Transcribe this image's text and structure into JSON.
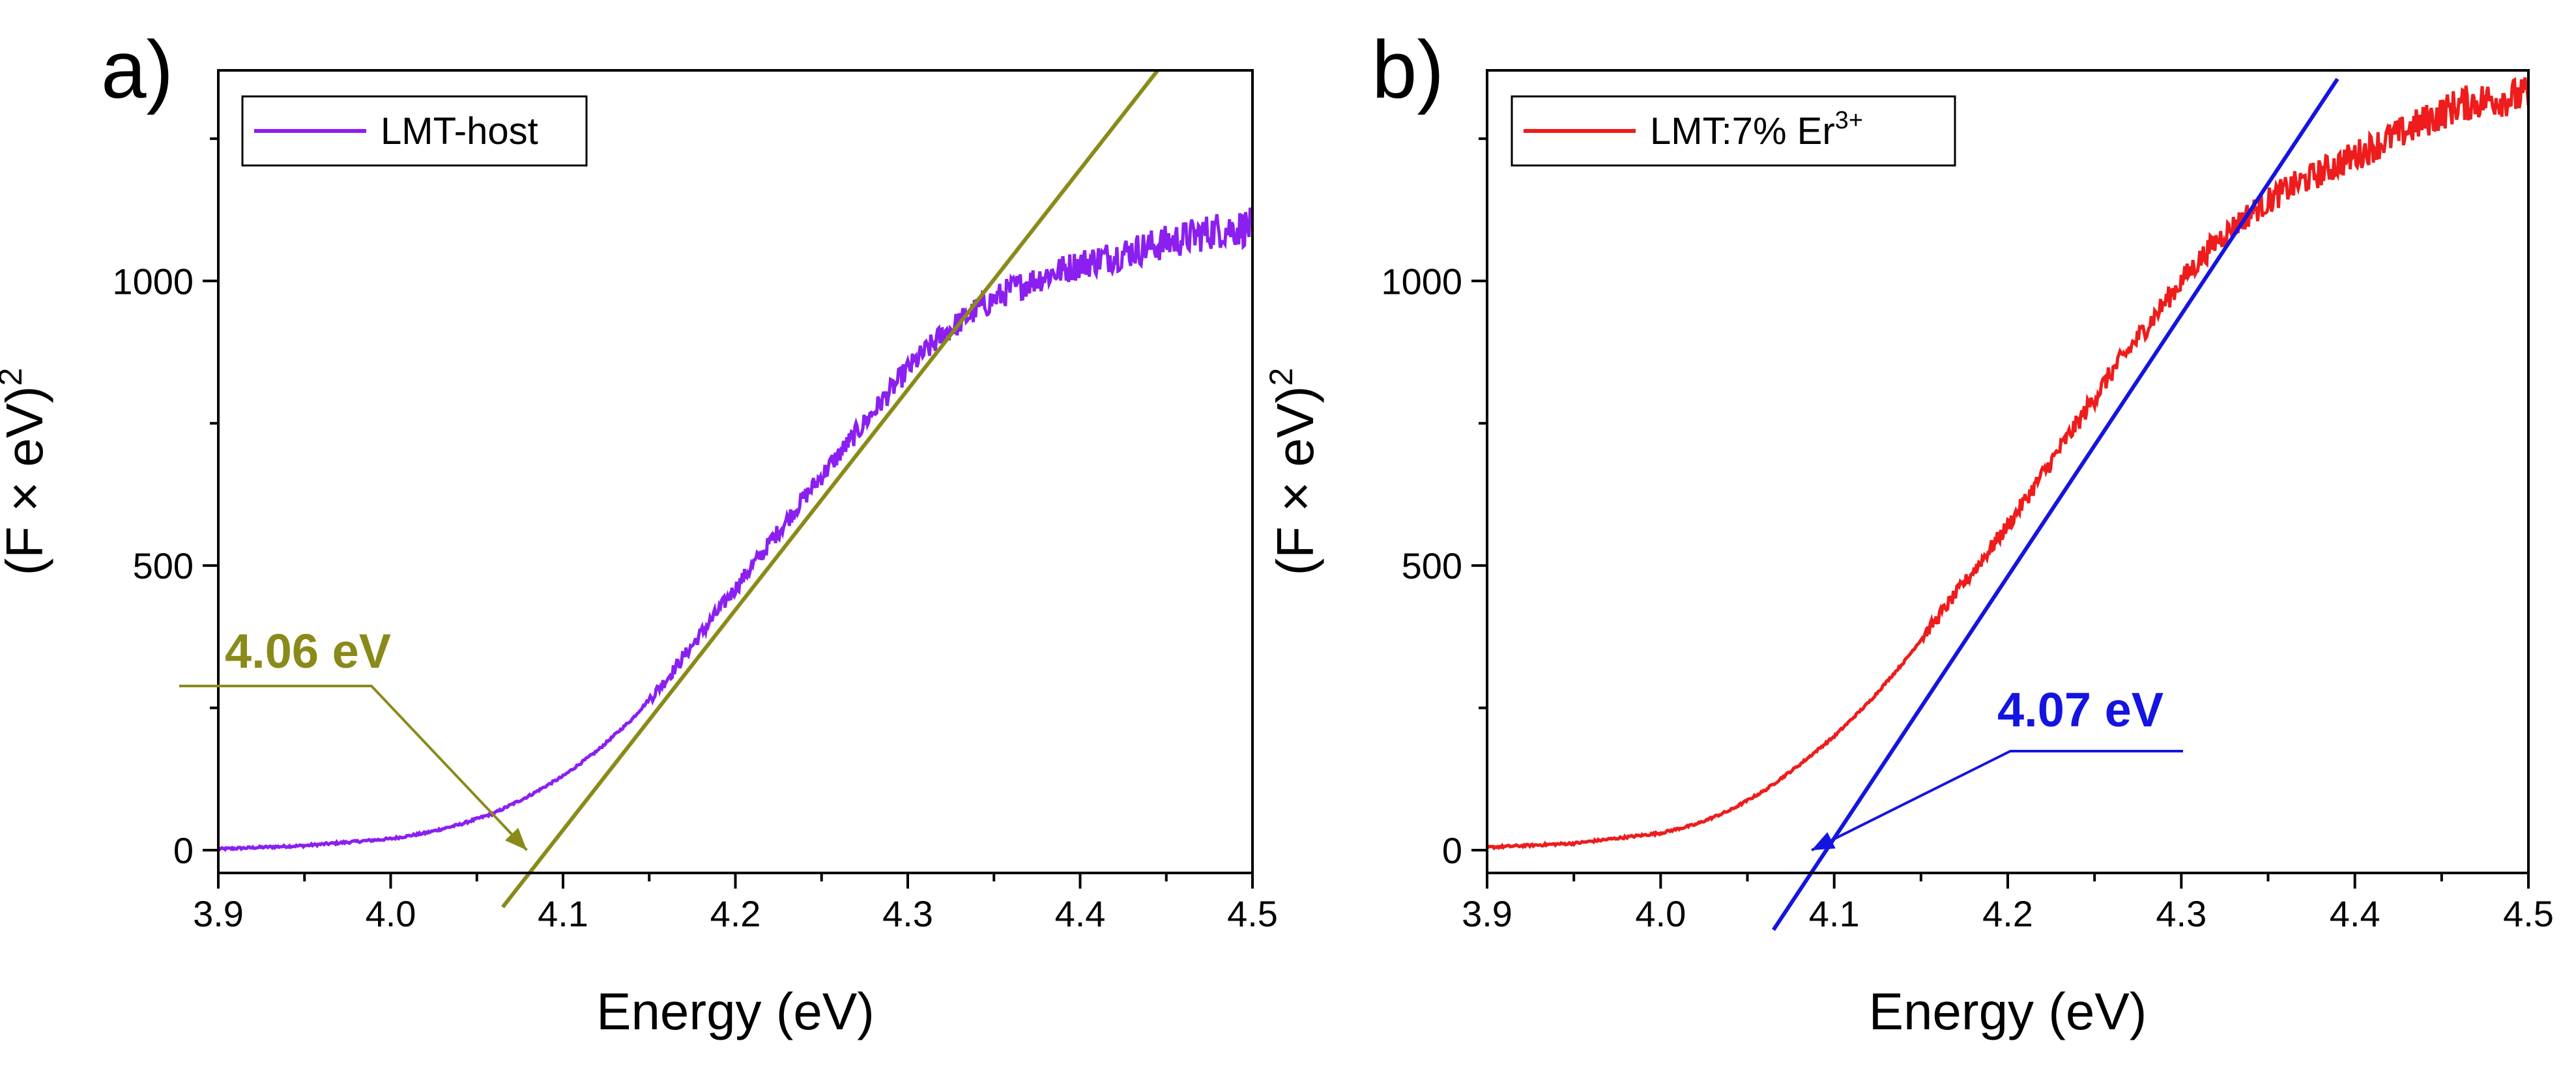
{
  "chart_data": [
    {
      "type": "line",
      "panel_label": "a)",
      "xlabel": "Energy (eV)",
      "ylabel_main": "(F × eV)",
      "ylabel_sup": "2",
      "xlim": [
        3.9,
        4.5
      ],
      "ylim": [
        -40,
        1370
      ],
      "xticks": [
        3.9,
        4.0,
        4.1,
        4.2,
        4.3,
        4.4,
        4.5
      ],
      "xtick_labels": [
        "3.9",
        "4.0",
        "4.1",
        "4.2",
        "4.3",
        "4.4",
        "4.5"
      ],
      "yticks": [
        0,
        500,
        1000
      ],
      "ytick_labels": [
        "0",
        "500",
        "1000"
      ],
      "legend_location": "top-left",
      "grid": false,
      "series": [
        {
          "name": "LMT-host",
          "color": "#8b1ff0",
          "x": [
            3.9,
            3.95,
            4.0,
            4.02,
            4.04,
            4.06,
            4.08,
            4.1,
            4.12,
            4.14,
            4.16,
            4.18,
            4.2,
            4.22,
            4.24,
            4.26,
            4.28,
            4.3,
            4.32,
            4.34,
            4.36,
            4.38,
            4.4,
            4.42,
            4.44,
            4.46,
            4.48,
            4.5
          ],
          "y": [
            2,
            8,
            20,
            30,
            45,
            65,
            95,
            130,
            175,
            230,
            300,
            380,
            460,
            540,
            620,
            695,
            770,
            845,
            905,
            950,
            985,
            1010,
            1030,
            1045,
            1060,
            1075,
            1090,
            1095
          ]
        }
      ],
      "fit_line": {
        "color": "#8a8a1a",
        "x": [
          4.065,
          4.445
        ],
        "y": [
          -100,
          1370
        ]
      },
      "annotation": {
        "text": "4.06 eV",
        "color": "#8a8a1a",
        "arrow_to": [
          4.079,
          0
        ]
      }
    },
    {
      "type": "line",
      "panel_label": "b)",
      "xlabel": "Energy (eV)",
      "ylabel_main": "(F × eV)",
      "ylabel_sup": "2",
      "xlim": [
        3.9,
        4.5
      ],
      "ylim": [
        -40,
        1370
      ],
      "xticks": [
        3.9,
        4.0,
        4.1,
        4.2,
        4.3,
        4.4,
        4.5
      ],
      "xtick_labels": [
        "3.9",
        "4.0",
        "4.1",
        "4.2",
        "4.3",
        "4.4",
        "4.5"
      ],
      "yticks": [
        0,
        500,
        1000
      ],
      "ytick_labels": [
        "0",
        "500",
        "1000"
      ],
      "legend_location": "top-left",
      "grid": false,
      "series": [
        {
          "name": "LMT:7% Er",
          "name_sup": "3+",
          "color": "#ee1c1c",
          "x": [
            3.9,
            3.95,
            4.0,
            4.02,
            4.04,
            4.06,
            4.08,
            4.1,
            4.12,
            4.14,
            4.16,
            4.18,
            4.2,
            4.22,
            4.24,
            4.26,
            4.28,
            4.3,
            4.32,
            4.34,
            4.36,
            4.38,
            4.4,
            4.42,
            4.44,
            4.46,
            4.48,
            4.5
          ],
          "y": [
            5,
            12,
            30,
            45,
            70,
            105,
            150,
            200,
            260,
            330,
            410,
            490,
            570,
            660,
            750,
            840,
            920,
            1000,
            1070,
            1120,
            1160,
            1190,
            1220,
            1250,
            1280,
            1310,
            1320,
            1325
          ]
        }
      ],
      "fit_line": {
        "color": "#1414e0",
        "x": [
          4.065,
          4.39
        ],
        "y": [
          -140,
          1355
        ]
      },
      "annotation": {
        "text": "4.07 eV",
        "color": "#1414e0",
        "arrow_to": [
          4.087,
          0
        ]
      }
    }
  ]
}
